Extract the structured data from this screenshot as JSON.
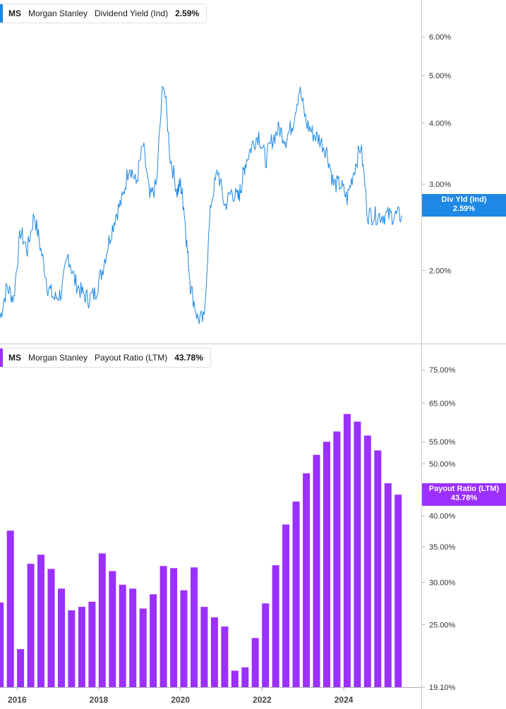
{
  "colors": {
    "yield_line": "#1e88e5",
    "payout_bar": "#9b30ff",
    "axis": "#c8c8c8"
  },
  "top_legend": {
    "ticker": "MS",
    "name": "Morgan Stanley",
    "metric": "Dividend Yield (Ind)",
    "value": "2.59%"
  },
  "bottom_legend": {
    "ticker": "MS",
    "name": "Morgan Stanley",
    "metric": "Payout Ratio (LTM)",
    "value": "43.78%"
  },
  "top_tag": {
    "line1": "Div Yld (Ind)",
    "line2": "2.59%"
  },
  "bottom_tag": {
    "line1": "Payout Ratio (LTM)",
    "line2": "43.78%"
  },
  "chart_data": [
    {
      "type": "line",
      "series": [
        {
          "name": "Dividend Yield (Ind)",
          "x": [
            "2015-08",
            "2015-10",
            "2015-12",
            "2016-02",
            "2016-04",
            "2016-06",
            "2016-08",
            "2016-10",
            "2016-12",
            "2017-02",
            "2017-04",
            "2017-06",
            "2017-08",
            "2017-10",
            "2017-12",
            "2018-02",
            "2018-04",
            "2018-06",
            "2018-08",
            "2018-10",
            "2018-12",
            "2019-02",
            "2019-04",
            "2019-06",
            "2019-08",
            "2019-10",
            "2019-12",
            "2020-01",
            "2020-02",
            "2020-03",
            "2020-04",
            "2020-06",
            "2020-08",
            "2020-10",
            "2020-12",
            "2021-02",
            "2021-04",
            "2021-06",
            "2021-07",
            "2021-08",
            "2021-10",
            "2021-12",
            "2022-02",
            "2022-04",
            "2022-06",
            "2022-08",
            "2022-10",
            "2022-12",
            "2023-02",
            "2023-04",
            "2023-06",
            "2023-08",
            "2023-10",
            "2023-12",
            "2024-02",
            "2024-04",
            "2024-06",
            "2024-08",
            "2024-10",
            "2024-12",
            "2025-02",
            "2025-04",
            "2025-06"
          ],
          "values": [
            1.6,
            1.85,
            1.75,
            2.4,
            2.2,
            2.6,
            2.2,
            1.85,
            1.75,
            1.8,
            2.15,
            1.9,
            1.8,
            1.75,
            1.8,
            2.0,
            2.3,
            2.6,
            2.8,
            3.3,
            3.0,
            3.6,
            2.8,
            3.0,
            4.9,
            3.4,
            2.9,
            3.0,
            2.7,
            2.2,
            1.85,
            1.6,
            1.58,
            2.75,
            3.2,
            2.7,
            2.9,
            2.8,
            3.0,
            3.3,
            3.6,
            3.8,
            3.35,
            3.7,
            3.9,
            3.7,
            4.0,
            4.7,
            4.0,
            3.8,
            3.7,
            3.5,
            3.0,
            3.0,
            2.8,
            3.2,
            3.6,
            2.6,
            2.59,
            2.59,
            2.59,
            2.59,
            2.59
          ]
        }
      ],
      "ylim": [
        1.5,
        6.5
      ],
      "yscale": "log",
      "y_ticks": [
        "2.00%",
        "3.00%",
        "4.00%",
        "5.00%",
        "6.00%"
      ],
      "y_tick_values": [
        2,
        3,
        4,
        5,
        6
      ]
    },
    {
      "type": "bar",
      "series": [
        {
          "name": "Payout Ratio (LTM)",
          "x": [
            "2015-08",
            "2015-11",
            "2016-02",
            "2016-05",
            "2016-08",
            "2016-11",
            "2017-02",
            "2017-05",
            "2017-08",
            "2017-11",
            "2018-02",
            "2018-05",
            "2018-08",
            "2018-11",
            "2019-02",
            "2019-05",
            "2019-08",
            "2019-11",
            "2020-02",
            "2020-05",
            "2020-08",
            "2020-11",
            "2021-02",
            "2021-05",
            "2021-08",
            "2021-11",
            "2022-02",
            "2022-05",
            "2022-08",
            "2022-11",
            "2023-02",
            "2023-05",
            "2023-08",
            "2023-11",
            "2024-02",
            "2024-05",
            "2024-08",
            "2024-11",
            "2025-02",
            "2025-05"
          ],
          "values": [
            27.5,
            37.5,
            22.5,
            32.5,
            33.8,
            31.8,
            29.2,
            26.6,
            27.0,
            27.6,
            34.0,
            31.5,
            29.7,
            29.2,
            26.8,
            28.5,
            32.2,
            31.9,
            29.0,
            32.0,
            27.0,
            25.8,
            24.8,
            20.5,
            20.8,
            23.6,
            27.4,
            32.3,
            38.5,
            42.5,
            48.0,
            52.0,
            55.0,
            57.5,
            62.0,
            60.0,
            56.5,
            53.0,
            46.0,
            43.78
          ]
        }
      ],
      "ylim": [
        19.1,
        80
      ],
      "yscale": "log",
      "y_ticks": [
        "19.10%",
        "25.00%",
        "30.00%",
        "35.00%",
        "40.00%",
        "50.00%",
        "55.00%",
        "65.00%",
        "75.00%"
      ],
      "y_tick_values": [
        19.1,
        25,
        30,
        35,
        40,
        50,
        55,
        65,
        75
      ],
      "x_ticks": [
        "2016",
        "2018",
        "2020",
        "2022",
        "2024"
      ],
      "x_tick_values": [
        "2016-01",
        "2018-01",
        "2020-01",
        "2022-01",
        "2024-01"
      ]
    }
  ]
}
